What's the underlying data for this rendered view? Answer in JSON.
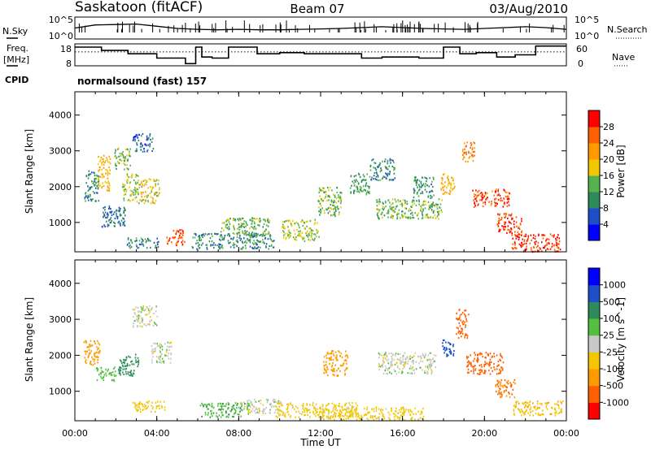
{
  "header": {
    "station": "Saskatoon (fitACF)",
    "beam": "Beam 07",
    "date": "03/Aug/2010"
  },
  "left_labels": {
    "nsky": "N.Sky",
    "freq_line1": "Freq.",
    "freq_line2": "[MHz]",
    "cpid": "CPID"
  },
  "right_labels": {
    "nsearch": "N.Search",
    "nave": "Nave"
  },
  "sky_axis": {
    "top": "10^5",
    "bottom": "10^0"
  },
  "freq_axis": {
    "top": "18",
    "bottom": "8"
  },
  "nave_axis": {
    "top": "60",
    "bottom": "0"
  },
  "cpid_text": "normalsound (fast) 157",
  "chart_data": [
    {
      "type": "line",
      "title": "",
      "ylabel": "",
      "note": "N.Sky / N.Search noise strip, log scale 10^0 to 10^5",
      "x_hours": [
        0,
        1,
        2,
        3,
        4,
        5,
        6,
        7,
        8,
        9,
        10,
        11,
        12,
        13,
        14,
        15,
        16,
        17,
        18,
        19,
        20,
        21,
        22,
        23,
        24
      ],
      "series": [
        {
          "name": "N.Sky",
          "values": [
            2.5,
            3.2,
            3.3,
            3.4,
            2.9,
            2.4,
            2.2,
            2.1,
            2.2,
            2.1,
            2.1,
            2.2,
            2.3,
            2.4,
            2.6,
            2.8,
            2.6,
            2.4,
            2.3,
            2.2,
            2.4,
            2.6,
            2.8,
            2.6,
            2.2
          ]
        }
      ]
    },
    {
      "type": "line",
      "title": "",
      "ylabel": "Freq. [MHz]",
      "note": "Operating frequency (solid, left axis) and Nave (dotted, right axis)",
      "steps": [
        {
          "x0": 0.0,
          "x1": 1.3,
          "freq": 16.5
        },
        {
          "x0": 1.3,
          "x1": 2.6,
          "freq": 15
        },
        {
          "x0": 2.6,
          "x1": 4.0,
          "freq": 13.5
        },
        {
          "x0": 4.0,
          "x1": 5.4,
          "freq": 11.5
        },
        {
          "x0": 5.4,
          "x1": 5.9,
          "freq": 9
        },
        {
          "x0": 5.9,
          "x1": 6.2,
          "freq": 16.5
        },
        {
          "x0": 6.2,
          "x1": 6.7,
          "freq": 12
        },
        {
          "x0": 6.7,
          "x1": 7.5,
          "freq": 11.5
        },
        {
          "x0": 7.5,
          "x1": 8.9,
          "freq": 16.5
        },
        {
          "x0": 8.9,
          "x1": 10.0,
          "freq": 13.5
        },
        {
          "x0": 10.0,
          "x1": 11.2,
          "freq": 14
        },
        {
          "x0": 11.2,
          "x1": 14.0,
          "freq": 13.5
        },
        {
          "x0": 14.0,
          "x1": 15.0,
          "freq": 11.5
        },
        {
          "x0": 15.0,
          "x1": 16.8,
          "freq": 12
        },
        {
          "x0": 16.8,
          "x1": 18.0,
          "freq": 11.5
        },
        {
          "x0": 18.0,
          "x1": 18.8,
          "freq": 16.5
        },
        {
          "x0": 18.8,
          "x1": 19.6,
          "freq": 13.5
        },
        {
          "x0": 19.6,
          "x1": 20.6,
          "freq": 14
        },
        {
          "x0": 20.6,
          "x1": 21.5,
          "freq": 12
        },
        {
          "x0": 21.5,
          "x1": 22.5,
          "freq": 13
        },
        {
          "x0": 22.5,
          "x1": 24.0,
          "freq": 17
        }
      ],
      "nave_value": 38,
      "ylim": [
        8,
        18
      ]
    },
    {
      "type": "heatmap",
      "title": "",
      "ylabel": "Slant Range [km]",
      "cbar_label": "Power [dB]",
      "ylim": [
        180,
        4650
      ],
      "yticks": [
        1000,
        2000,
        3000,
        4000
      ],
      "colorbar": {
        "ticks": [
          "4",
          "8",
          "12",
          "16",
          "20",
          "24",
          "28"
        ],
        "colors": [
          "#0000ff",
          "#1f4fc8",
          "#2e8a5a",
          "#55b24f",
          "#f2c600",
          "#ff9a00",
          "#ff6000",
          "#ff0000"
        ]
      },
      "blobs": [
        {
          "t": 0.8,
          "r": 2050,
          "dt": 0.35,
          "dr": 450,
          "v": 10
        },
        {
          "t": 1.4,
          "r": 2400,
          "dt": 0.3,
          "dr": 500,
          "v": 20
        },
        {
          "t": 1.9,
          "r": 1200,
          "dt": 0.6,
          "dr": 300,
          "v": 8
        },
        {
          "t": 2.3,
          "r": 2800,
          "dt": 0.4,
          "dr": 300,
          "v": 14
        },
        {
          "t": 2.7,
          "r": 2000,
          "dt": 0.4,
          "dr": 400,
          "v": 16
        },
        {
          "t": 3.3,
          "r": 3250,
          "dt": 0.5,
          "dr": 250,
          "v": 7
        },
        {
          "t": 3.6,
          "r": 1900,
          "dt": 0.5,
          "dr": 350,
          "v": 18
        },
        {
          "t": 3.3,
          "r": 450,
          "dt": 0.8,
          "dr": 140,
          "v": 10
        },
        {
          "t": 4.9,
          "r": 600,
          "dt": 0.45,
          "dr": 220,
          "v": 27
        },
        {
          "t": 7.7,
          "r": 500,
          "dt": 2.0,
          "dr": 220,
          "v": 10
        },
        {
          "t": 8.3,
          "r": 900,
          "dt": 1.2,
          "dr": 250,
          "v": 14
        },
        {
          "t": 11.0,
          "r": 800,
          "dt": 0.9,
          "dr": 300,
          "v": 16
        },
        {
          "t": 12.4,
          "r": 1600,
          "dt": 0.6,
          "dr": 400,
          "v": 14
        },
        {
          "t": 13.9,
          "r": 2100,
          "dt": 0.5,
          "dr": 300,
          "v": 12
        },
        {
          "t": 15.0,
          "r": 2500,
          "dt": 0.6,
          "dr": 300,
          "v": 10
        },
        {
          "t": 16.3,
          "r": 1400,
          "dt": 1.6,
          "dr": 280,
          "v": 14
        },
        {
          "t": 17.0,
          "r": 2000,
          "dt": 0.5,
          "dr": 300,
          "v": 10
        },
        {
          "t": 18.2,
          "r": 2100,
          "dt": 0.35,
          "dr": 300,
          "v": 20
        },
        {
          "t": 19.2,
          "r": 3000,
          "dt": 0.3,
          "dr": 300,
          "v": 24
        },
        {
          "t": 20.3,
          "r": 1700,
          "dt": 0.9,
          "dr": 250,
          "v": 27
        },
        {
          "t": 21.2,
          "r": 1000,
          "dt": 0.6,
          "dr": 280,
          "v": 28
        },
        {
          "t": 22.5,
          "r": 450,
          "dt": 1.2,
          "dr": 250,
          "v": 28
        }
      ]
    },
    {
      "type": "heatmap",
      "title": "",
      "ylabel": "Slant Range [km]",
      "cbar_label": "Velocity [m s^-1]",
      "ylim": [
        180,
        4650
      ],
      "yticks": [
        1000,
        2000,
        3000,
        4000
      ],
      "colorbar": {
        "ticks": [
          "1000",
          "500",
          "100",
          "25",
          "-25",
          "-100",
          "-500",
          "-1000"
        ],
        "colors": [
          "#0000ff",
          "#1f4fc8",
          "#2e8a5a",
          "#55c040",
          "#c8c8c8",
          "#f2c600",
          "#ff9a00",
          "#ff6000",
          "#ff0000"
        ]
      },
      "blobs": [
        {
          "t": 0.8,
          "r": 2100,
          "dt": 0.4,
          "dr": 350,
          "v": -150
        },
        {
          "t": 1.5,
          "r": 1500,
          "dt": 0.5,
          "dr": 200,
          "v": 60
        },
        {
          "t": 2.6,
          "r": 1750,
          "dt": 0.5,
          "dr": 300,
          "v": 300
        },
        {
          "t": 3.4,
          "r": 3100,
          "dt": 0.6,
          "dr": 300,
          "v": 0
        },
        {
          "t": 4.2,
          "r": 2100,
          "dt": 0.5,
          "dr": 300,
          "v": 0
        },
        {
          "t": 3.6,
          "r": 600,
          "dt": 0.8,
          "dr": 150,
          "v": -60
        },
        {
          "t": 7.3,
          "r": 500,
          "dt": 1.2,
          "dr": 200,
          "v": 80
        },
        {
          "t": 9.0,
          "r": 600,
          "dt": 1.0,
          "dr": 200,
          "v": 0
        },
        {
          "t": 11.8,
          "r": 500,
          "dt": 2.0,
          "dr": 200,
          "v": -60
        },
        {
          "t": 12.7,
          "r": 1800,
          "dt": 0.6,
          "dr": 350,
          "v": -300
        },
        {
          "t": 14.5,
          "r": 400,
          "dt": 2.5,
          "dr": 180,
          "v": -60
        },
        {
          "t": 16.2,
          "r": 1800,
          "dt": 1.4,
          "dr": 300,
          "v": 0
        },
        {
          "t": 18.2,
          "r": 2200,
          "dt": 0.3,
          "dr": 250,
          "v": 600
        },
        {
          "t": 18.9,
          "r": 2900,
          "dt": 0.3,
          "dr": 400,
          "v": -700
        },
        {
          "t": 20.0,
          "r": 1800,
          "dt": 0.9,
          "dr": 300,
          "v": -700
        },
        {
          "t": 21.0,
          "r": 1100,
          "dt": 0.5,
          "dr": 250,
          "v": -500
        },
        {
          "t": 22.6,
          "r": 550,
          "dt": 1.2,
          "dr": 200,
          "v": -80
        }
      ]
    }
  ],
  "x_axis": {
    "label": "Time UT",
    "ticks": [
      "00:00",
      "04:00",
      "08:00",
      "12:00",
      "16:00",
      "20:00",
      "00:00"
    ],
    "range_hours": [
      0,
      24
    ]
  }
}
